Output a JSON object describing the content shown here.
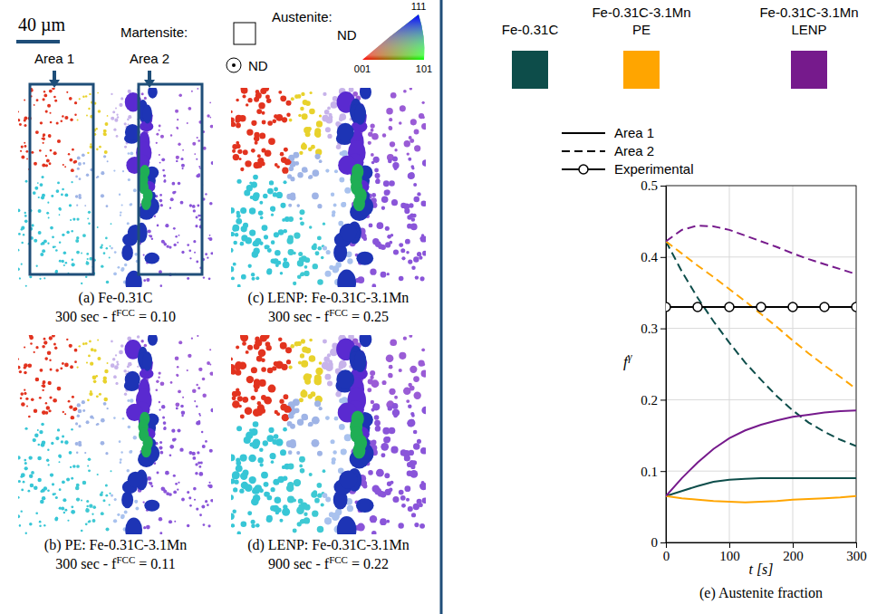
{
  "panels": {
    "scale_bar": "40 µm",
    "martensite_label": "Martensite:",
    "austenite_label": "Austenite:",
    "ipf": {
      "axis": "ND",
      "corners": [
        "001",
        "101",
        "111"
      ]
    },
    "normal": "ND",
    "areas": [
      "Area 1",
      "Area 2"
    ],
    "maps": [
      {
        "label": "(a) Fe-0.31C",
        "prefix": "300 sec - f",
        "sup": "FCC",
        "suffix": " = 0.10"
      },
      {
        "label": "(b) PE: Fe-0.31C-3.1Mn",
        "prefix": "300 sec - f",
        "sup": "FCC",
        "suffix": " = 0.11"
      },
      {
        "label": "(c) LENP: Fe-0.31C-3.1Mn",
        "prefix": "300 sec - f",
        "sup": "FCC",
        "suffix": " = 0.25"
      },
      {
        "label": "(d) LENP: Fe-0.31C-3.1Mn",
        "prefix": "900 sec - f",
        "sup": "FCC",
        "suffix": " = 0.22"
      }
    ]
  },
  "chart_data": {
    "type": "line",
    "caption": "(e) Austenite fraction",
    "xlabel": "t [s]",
    "ylabel": "f",
    "ylabel_superscript": "γ",
    "legend": "top",
    "legend_colors": [
      {
        "label": [
          "Fe-0.31C"
        ],
        "color": "#0d4d4a"
      },
      {
        "label": [
          "Fe-0.31C-3.1Mn",
          "PE"
        ],
        "color": "#ffa500"
      },
      {
        "label": [
          "Fe-0.31C-3.1Mn",
          "LENP"
        ],
        "color": "#761a8c"
      }
    ],
    "legend_styles": [
      {
        "label": "Area 1",
        "line_style": "solid"
      },
      {
        "label": "Area 2",
        "line_style": "dashed"
      },
      {
        "label": "Experimental",
        "line_style": "solid",
        "marker": "circle"
      }
    ],
    "x": [
      0,
      25,
      50,
      75,
      100,
      125,
      150,
      175,
      200,
      225,
      250,
      275,
      300
    ],
    "series": [
      {
        "color": "#0d4d4a",
        "line_style": "solid",
        "values": [
          0.065,
          0.072,
          0.079,
          0.085,
          0.088,
          0.089,
          0.09,
          0.09,
          0.09,
          0.09,
          0.09,
          0.09,
          0.09
        ]
      },
      {
        "color": "#0d4d4a",
        "line_style": "dashed",
        "values": [
          0.422,
          0.38,
          0.343,
          0.31,
          0.28,
          0.252,
          0.228,
          0.205,
          0.185,
          0.168,
          0.155,
          0.144,
          0.135
        ]
      },
      {
        "color": "#ffa500",
        "line_style": "solid",
        "values": [
          0.065,
          0.062,
          0.06,
          0.058,
          0.057,
          0.056,
          0.057,
          0.058,
          0.06,
          0.061,
          0.062,
          0.063,
          0.065
        ]
      },
      {
        "color": "#ffa500",
        "line_style": "dashed",
        "values": [
          0.422,
          0.405,
          0.388,
          0.372,
          0.355,
          0.338,
          0.32,
          0.302,
          0.283,
          0.265,
          0.248,
          0.232,
          0.215
        ]
      },
      {
        "color": "#761a8c",
        "line_style": "solid",
        "values": [
          0.065,
          0.09,
          0.112,
          0.131,
          0.146,
          0.157,
          0.165,
          0.171,
          0.176,
          0.179,
          0.182,
          0.184,
          0.185
        ]
      },
      {
        "color": "#761a8c",
        "line_style": "dashed",
        "values": [
          0.422,
          0.438,
          0.444,
          0.443,
          0.438,
          0.43,
          0.422,
          0.414,
          0.405,
          0.397,
          0.39,
          0.383,
          0.376
        ]
      },
      {
        "color": "#000000",
        "line_style": "solid",
        "marker": "circle",
        "x": [
          0,
          50,
          100,
          150,
          200,
          250,
          300
        ],
        "values": [
          0.33,
          0.33,
          0.33,
          0.33,
          0.33,
          0.33,
          0.33
        ]
      }
    ],
    "xlim": [
      0,
      300
    ],
    "xticks": [
      0,
      100,
      200,
      300
    ],
    "ylim": [
      0,
      0.5
    ],
    "yticks": [
      0,
      0.1,
      0.2,
      0.3,
      0.4,
      0.5
    ],
    "grid": true
  }
}
